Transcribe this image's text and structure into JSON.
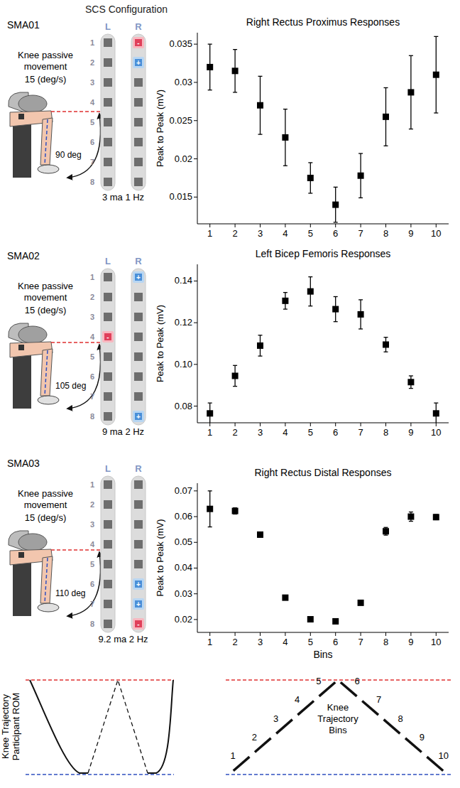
{
  "header": {
    "title": "SCS Configuration"
  },
  "electrode": {
    "columns": [
      "L",
      "R"
    ],
    "rows": [
      1,
      2,
      3,
      4,
      5,
      6,
      7,
      8
    ]
  },
  "participants": [
    {
      "id": "SMA01",
      "task": "Knee passive movement",
      "speed": "15 (deg/s)",
      "rom": "90 deg",
      "stim": "3 ma 1 Hz",
      "contacts": [
        {
          "column": "R",
          "row": 1,
          "polarity": "-"
        },
        {
          "column": "R",
          "row": 2,
          "polarity": "+"
        }
      ]
    },
    {
      "id": "SMA02",
      "task": "Knee passive movement",
      "speed": "15 (deg/s)",
      "rom": "105 deg",
      "stim": "9 ma 2 Hz",
      "contacts": [
        {
          "column": "R",
          "row": 1,
          "polarity": "+"
        },
        {
          "column": "L",
          "row": 4,
          "polarity": "-"
        },
        {
          "column": "R",
          "row": 8,
          "polarity": "+"
        }
      ]
    },
    {
      "id": "SMA03",
      "task": "Knee passive movement",
      "speed": "15 (deg/s)",
      "rom": "110 deg",
      "stim": "9.2 ma 2 Hz",
      "contacts": [
        {
          "column": "R",
          "row": 6,
          "polarity": "+"
        },
        {
          "column": "R",
          "row": 7,
          "polarity": "+"
        },
        {
          "column": "R",
          "row": 8,
          "polarity": "-"
        }
      ]
    }
  ],
  "chart_data": [
    {
      "type": "scatter",
      "title": "Right Rectus Proximus Responses",
      "y_label": "Peak to Peak (mV)",
      "x": [
        1,
        2,
        3,
        4,
        5,
        6,
        7,
        8,
        9,
        10
      ],
      "values": [
        0.032,
        0.0315,
        0.027,
        0.0228,
        0.0175,
        0.014,
        0.0178,
        0.0255,
        0.0287,
        0.031
      ],
      "errors": [
        0.003,
        0.0028,
        0.0038,
        0.0037,
        0.002,
        0.0023,
        0.0029,
        0.0038,
        0.0048,
        0.005
      ],
      "xlim": [
        0.5,
        10.5
      ],
      "xticks": [
        1,
        2,
        3,
        4,
        5,
        6,
        7,
        8,
        9,
        10
      ],
      "ylim": [
        0.0115,
        0.0365
      ],
      "yticks": [
        0.015,
        0.02,
        0.025,
        0.03,
        0.035
      ],
      "color": "#000000",
      "marker": "square",
      "grid": false
    },
    {
      "type": "scatter",
      "title": "Left Bicep Femoris Responses",
      "y_label": "Peak to Peak (mV)",
      "x": [
        1,
        2,
        3,
        4,
        5,
        6,
        7,
        8,
        9,
        10
      ],
      "values": [
        0.0765,
        0.0945,
        0.109,
        0.1305,
        0.135,
        0.1265,
        0.124,
        0.1095,
        0.0915,
        0.0765
      ],
      "errors": [
        0.005,
        0.005,
        0.005,
        0.004,
        0.007,
        0.006,
        0.007,
        0.0035,
        0.003,
        0.005
      ],
      "xlim": [
        0.5,
        10.5
      ],
      "xticks": [
        1,
        2,
        3,
        4,
        5,
        6,
        7,
        8,
        9,
        10
      ],
      "ylim": [
        0.072,
        0.148
      ],
      "yticks": [
        0.08,
        {
          "value": 0.1,
          "label": "0.10"
        },
        0.12,
        0.14
      ],
      "color": "#000000",
      "marker": "square",
      "grid": false
    },
    {
      "type": "scatter",
      "title": "Right Rectus Distal Responses",
      "y_label": "Peak to Peak (mV)",
      "x_label": "Bins",
      "x": [
        1,
        2,
        3,
        4,
        5,
        6,
        7,
        8,
        9,
        10
      ],
      "values": [
        0.063,
        0.0622,
        0.053,
        0.0285,
        0.0201,
        0.0193,
        0.0265,
        0.0543,
        0.06,
        0.0598
      ],
      "errors": [
        0.007,
        0.0012,
        0.001,
        0.0005,
        0.0005,
        0.0005,
        0.0005,
        0.0015,
        0.0018,
        0.001
      ],
      "xlim": [
        0.5,
        10.5
      ],
      "xticks": [
        1,
        2,
        3,
        4,
        5,
        6,
        7,
        8,
        9,
        10
      ],
      "ylim": [
        0.015,
        0.073
      ],
      "yticks": [
        0.02,
        0.03,
        0.04,
        0.05,
        0.06,
        0.07
      ],
      "color": "#000000",
      "marker": "square",
      "grid": false
    }
  ],
  "trajectory": {
    "y_label": "Knee Trajectory Participant ROM",
    "bins_label": "Knee Trajectory Bins",
    "bins": [
      1,
      2,
      3,
      4,
      5,
      6,
      7,
      8,
      9,
      10
    ]
  }
}
